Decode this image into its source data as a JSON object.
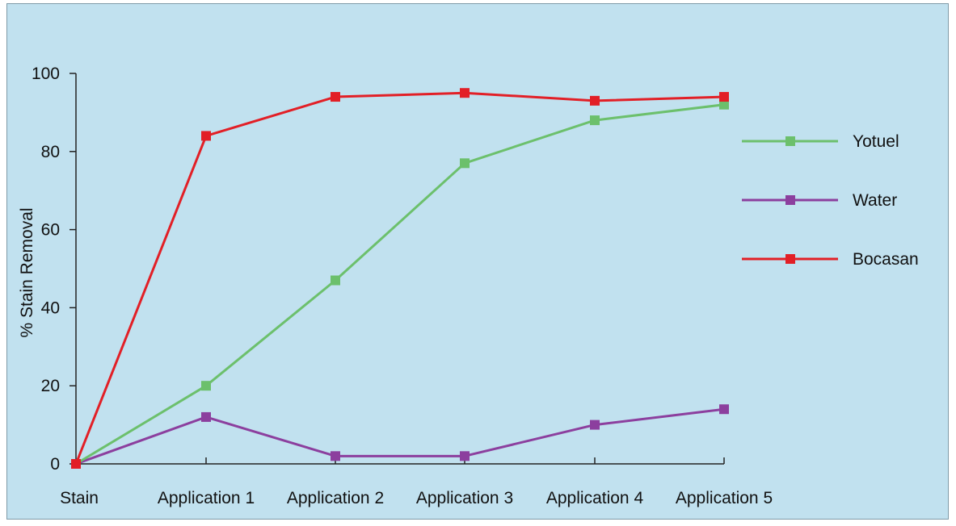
{
  "chart_data": {
    "type": "line",
    "title": "",
    "xlabel": "",
    "ylabel": "% Stain Removal",
    "categories": [
      "Stain",
      "Application 1",
      "Application 2",
      "Application 3",
      "Application 4",
      "Application 5"
    ],
    "ylim": [
      0,
      100
    ],
    "yticks": [
      "0",
      "20",
      "40",
      "60",
      "80",
      "100"
    ],
    "grid": false,
    "legend_position": "right",
    "series": [
      {
        "name": "Yotuel",
        "color": "#6cc06c",
        "values": [
          0,
          20,
          47,
          77,
          88,
          92
        ]
      },
      {
        "name": "Water",
        "color": "#8c3f9e",
        "values": [
          0,
          12,
          2,
          2,
          10,
          14
        ]
      },
      {
        "name": "Bocasan",
        "color": "#e21f26",
        "values": [
          0,
          84,
          94,
          95,
          93,
          94
        ]
      }
    ]
  }
}
